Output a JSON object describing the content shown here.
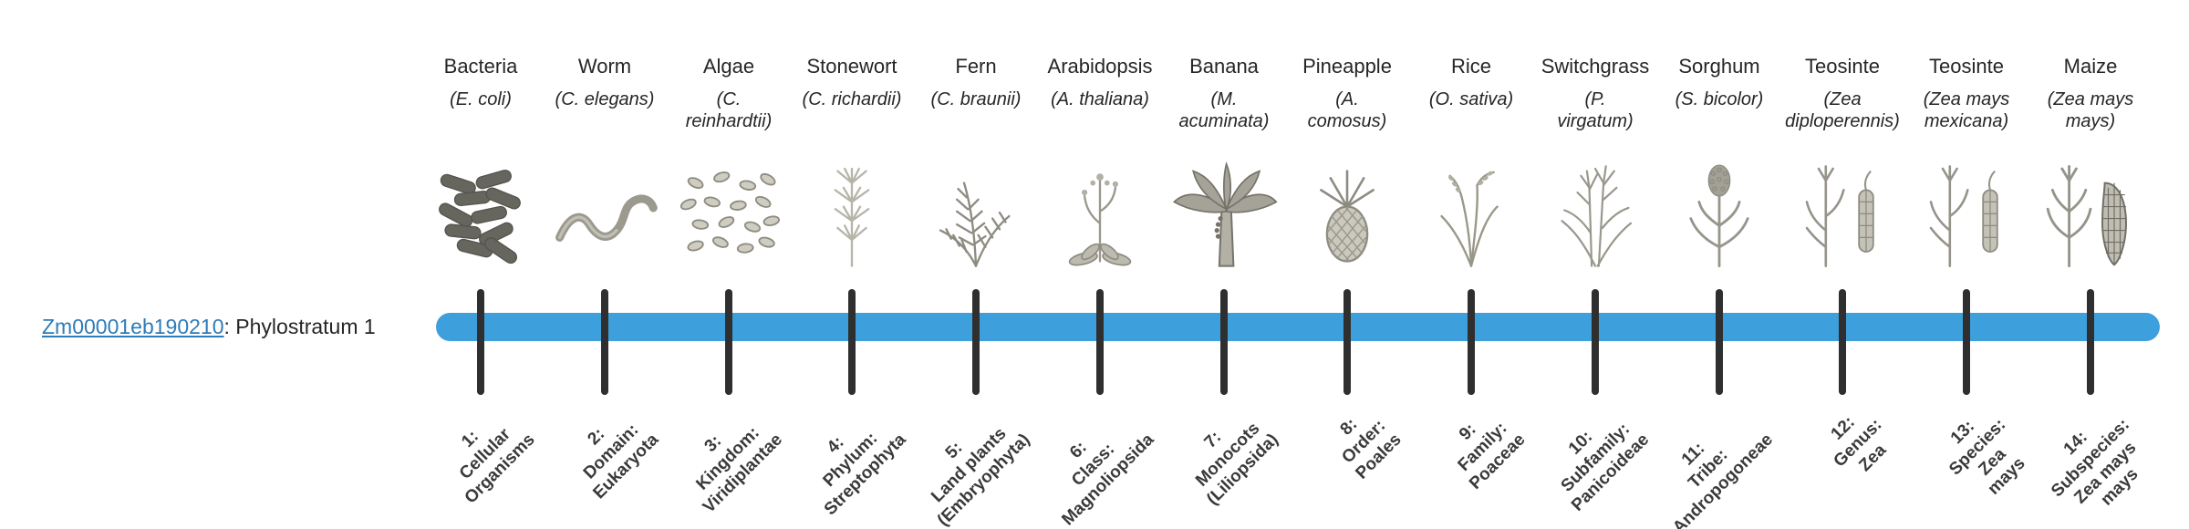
{
  "gene": {
    "id": "Zm00001eb190210",
    "suffix": ": Phylostratum 1"
  },
  "colors": {
    "bar_color": "#3d9fdc",
    "tick_color": "#2f2f2f",
    "link_color": "#2e7cb8"
  },
  "organisms": [
    {
      "common": "Bacteria",
      "sci": "(E. coli)",
      "icon": "bacteria"
    },
    {
      "common": "Worm",
      "sci": "(C. elegans)",
      "icon": "worm"
    },
    {
      "common": "Algae",
      "sci": "(C.\nreinhardtii)",
      "icon": "algae"
    },
    {
      "common": "Stonewort",
      "sci": "(C. richardii)",
      "icon": "stonewort"
    },
    {
      "common": "Fern",
      "sci": "(C. braunii)",
      "icon": "fern"
    },
    {
      "common": "Arabidopsis",
      "sci": "(A. thaliana)",
      "icon": "arabidopsis"
    },
    {
      "common": "Banana",
      "sci": "(M.\nacuminata)",
      "icon": "banana"
    },
    {
      "common": "Pineapple",
      "sci": "(A.\ncomosus)",
      "icon": "pineapple"
    },
    {
      "common": "Rice",
      "sci": "(O. sativa)",
      "icon": "rice"
    },
    {
      "common": "Switchgrass",
      "sci": "(P.\nvirgatum)",
      "icon": "switchgrass"
    },
    {
      "common": "Sorghum",
      "sci": "(S. bicolor)",
      "icon": "sorghum"
    },
    {
      "common": "Teosinte",
      "sci": "(Zea\ndiploperennis)",
      "icon": "teosinte"
    },
    {
      "common": "Teosinte",
      "sci": "(Zea mays\nmexicana)",
      "icon": "teosinte"
    },
    {
      "common": "Maize",
      "sci": "(Zea mays\nmays)",
      "icon": "maize"
    }
  ],
  "phylostrata": [
    "1:\nCellular\nOrganisms",
    "2:\nDomain:\nEukaryota",
    "3:\nKingdom:\nViridiplantae",
    "4:\nPhylum:\nStreptophyta",
    "5:\nLand plants\n(Embryophyta)",
    "6:\nClass:\nMagnoliopsida",
    "7:\nMonocots\n(Liliopsida)",
    "8:\nOrder:\nPoales",
    "9:\nFamily:\nPoaceae",
    "10:\nSubfamily:\nPanicoideae",
    "11:\nTribe:\nAndropogoneae",
    "12:\nGenus:\nZea",
    "13:\nSpecies:\nZea\nmays",
    "14:\nSubspecies:\nZea mays\nmays"
  ]
}
